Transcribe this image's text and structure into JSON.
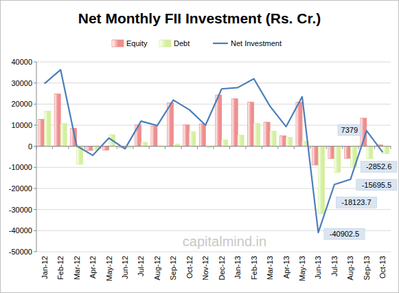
{
  "chart_data": {
    "type": "bar",
    "title": "Net Monthly FII Investment (Rs. Cr.)",
    "categories": [
      "Jan-12",
      "Feb-12",
      "Mar-12",
      "Apr-12",
      "May-12",
      "Jun-12",
      "Jul-12",
      "Aug-12",
      "Sep-12",
      "Oct-12",
      "Nov-12",
      "Dec-12",
      "Jan-13",
      "Feb-13",
      "Mar-13",
      "Apr-13",
      "May-13",
      "Jun-13",
      "Jul-13",
      "Aug-13",
      "Sep-13",
      "Oct-13"
    ],
    "series": [
      {
        "name": "Equity",
        "type": "bar",
        "color": "#ee8e8e",
        "values": [
          12800,
          24800,
          8500,
          -2000,
          -1800,
          -500,
          10200,
          9500,
          20600,
          10200,
          10600,
          24300,
          22500,
          20900,
          11400,
          5000,
          20900,
          -8900,
          -5800,
          -5700,
          13300,
          650
        ]
      },
      {
        "name": "Debt",
        "type": "bar",
        "color": "#d4ef9f",
        "values": [
          16700,
          10800,
          -8500,
          -1500,
          5500,
          -700,
          1900,
          -200,
          1100,
          6900,
          -700,
          3000,
          5300,
          10800,
          7200,
          4300,
          2300,
          -32000,
          -12300,
          -10000,
          -5900,
          -3500
        ]
      },
      {
        "name": "Net Investment",
        "type": "line",
        "color": "#4a7ebb",
        "values": [
          29700,
          36300,
          200,
          -4300,
          3900,
          -1200,
          11900,
          9800,
          21900,
          17300,
          10000,
          27200,
          27800,
          32000,
          19000,
          9300,
          23500,
          -40902.5,
          -18123.7,
          -15695.5,
          7379,
          -2852.6
        ],
        "value_labels": [
          null,
          null,
          null,
          null,
          null,
          null,
          null,
          null,
          null,
          null,
          null,
          null,
          null,
          null,
          null,
          null,
          null,
          "-40902.5",
          "-18123.7",
          "-15695.5",
          "7379",
          "-2852.6"
        ]
      }
    ],
    "ylim": [
      -50000,
      40000
    ],
    "yticks": [
      -50000,
      -40000,
      -30000,
      -20000,
      -10000,
      0,
      10000,
      20000,
      30000,
      40000
    ],
    "grid": true,
    "legend": "top",
    "annotations": [
      {
        "text": "capitalmind.in"
      }
    ]
  }
}
